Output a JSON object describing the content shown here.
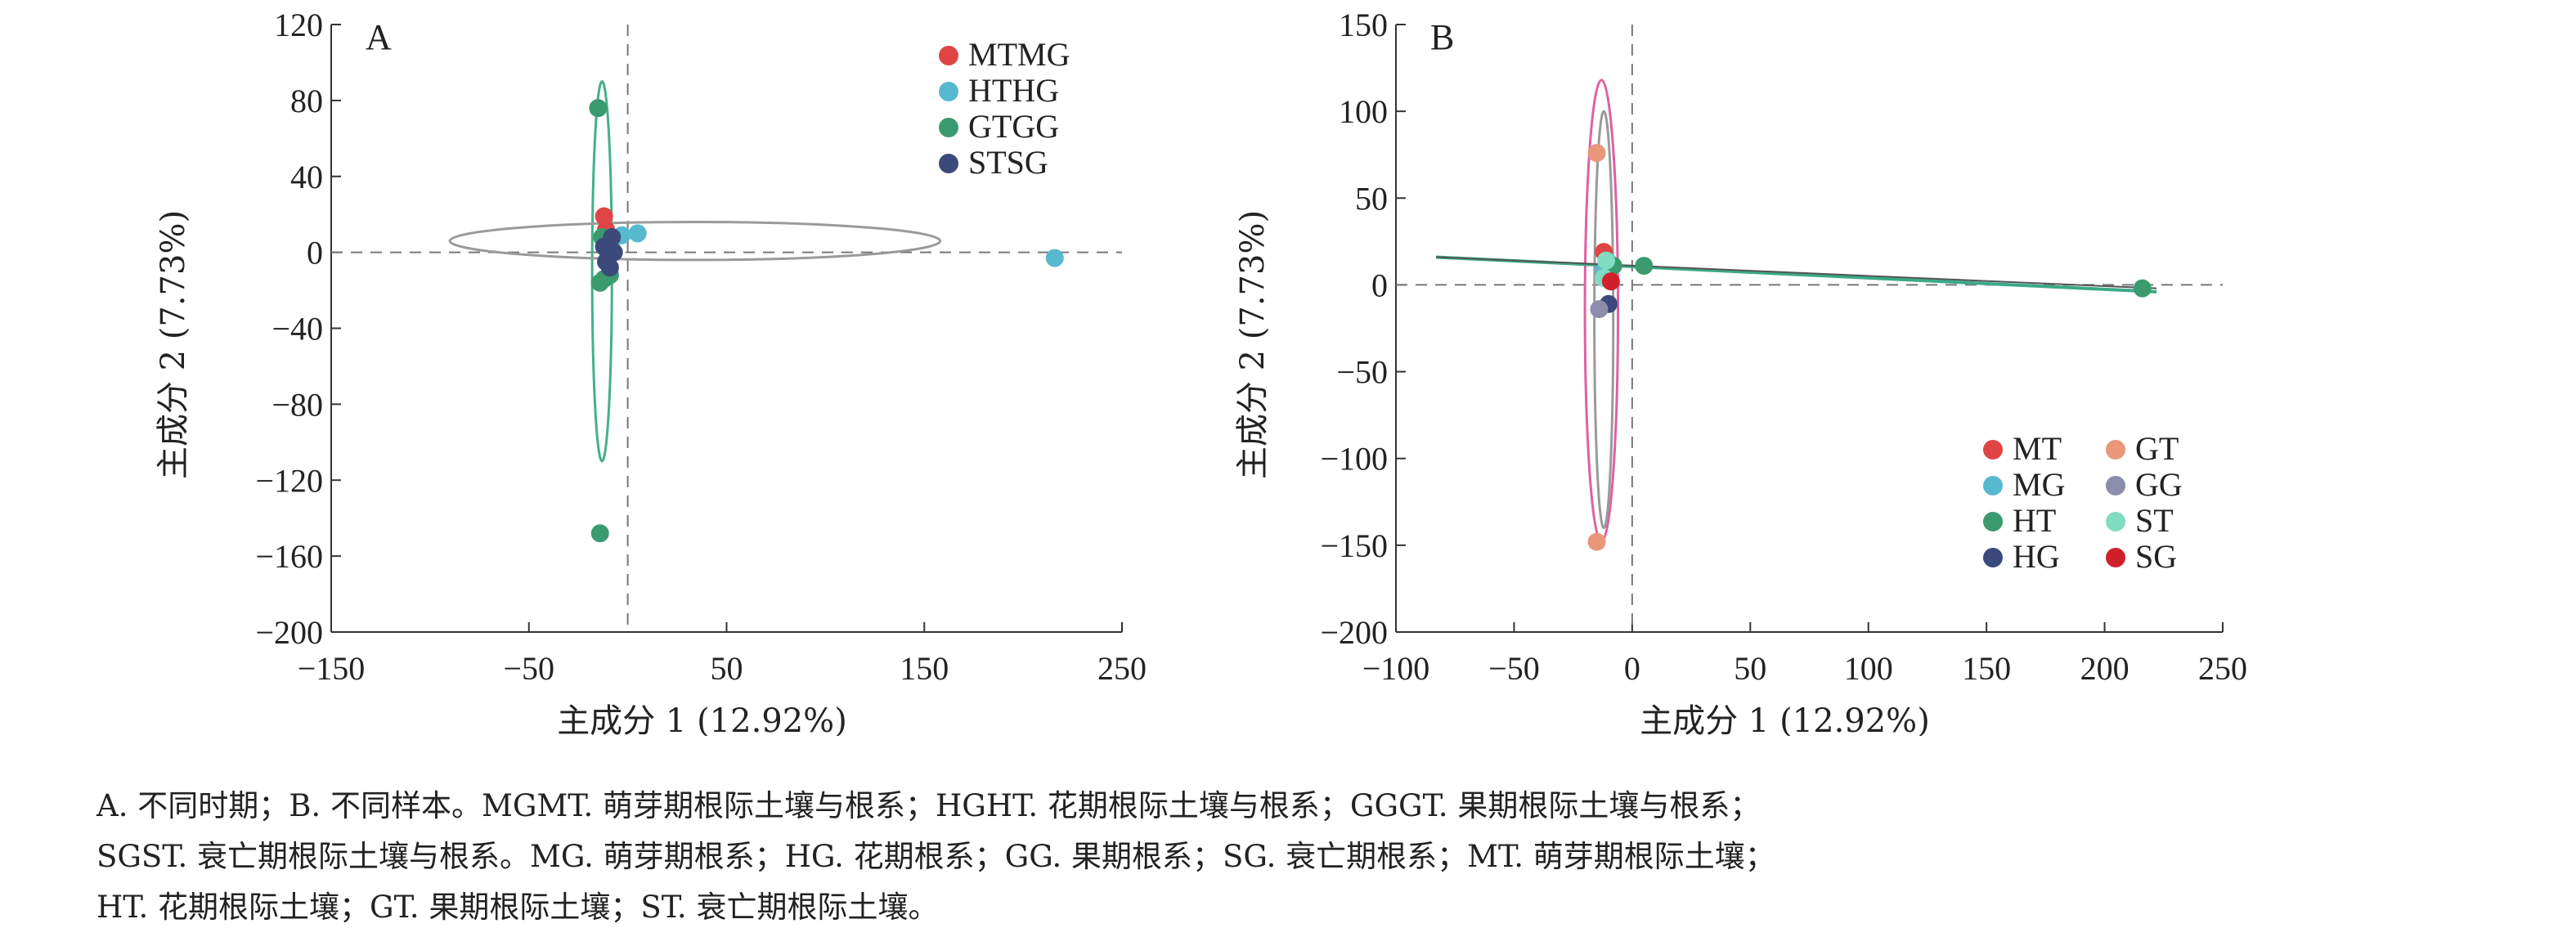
{
  "chart_data": [
    {
      "type": "scatter",
      "panel": "A",
      "xlabel": "主成分 1 (12.92%)",
      "ylabel": "主成分 2 (7.73%)",
      "xlim": [
        -150,
        250
      ],
      "ylim": [
        -200,
        120
      ],
      "xticks": [
        -150,
        -50,
        50,
        150,
        250
      ],
      "yticks": [
        -200,
        -160,
        -120,
        -80,
        -40,
        0,
        40,
        80,
        120
      ],
      "legend_position": "top-right",
      "reference_lines": {
        "x": 0,
        "y": 0
      },
      "series": [
        {
          "name": "MTMG",
          "color": "#e04545",
          "points": [
            [
              -12,
              19
            ],
            [
              -11,
              12
            ],
            [
              -10,
              5
            ]
          ]
        },
        {
          "name": "HTHG",
          "color": "#56b9cf",
          "points": [
            [
              5,
              10
            ],
            [
              -3,
              9
            ],
            [
              216,
              -3
            ],
            [
              -8,
              6
            ]
          ]
        },
        {
          "name": "GTGG",
          "color": "#3a9b6e",
          "points": [
            [
              -15,
              76
            ],
            [
              -14,
              -148
            ],
            [
              -12,
              -14
            ],
            [
              -14,
              -16
            ],
            [
              -9,
              -12
            ],
            [
              -13,
              8
            ]
          ]
        },
        {
          "name": "STSG",
          "color": "#3b4a7a",
          "points": [
            [
              -8,
              8
            ],
            [
              -7,
              0
            ],
            [
              -11,
              -5
            ],
            [
              -9,
              -8
            ],
            [
              -12,
              3
            ],
            [
              -10,
              -3
            ]
          ]
        }
      ],
      "ellipses": [
        {
          "group": "GTGG",
          "color": "#45b088",
          "cx": -13,
          "cy": -10,
          "rx": 5,
          "ry": 100
        },
        {
          "group": "HTHG",
          "color": "#9a9a9a",
          "cx": 34,
          "cy": 6,
          "rx": 124,
          "ry": 10
        },
        {
          "group": "MTMG",
          "color": "#9a9a9a",
          "cx": -11,
          "cy": 11,
          "rx": 2.5,
          "ry": 10
        },
        {
          "group": "STSG",
          "color": "#9a9a9a",
          "cx": -10,
          "cy": -1,
          "rx": 3,
          "ry": 12
        }
      ]
    },
    {
      "type": "scatter",
      "panel": "B",
      "xlabel": "主成分 1 (12.92%)",
      "ylabel": "主成分 2 (7.73%)",
      "xlim": [
        -100,
        250
      ],
      "ylim": [
        -200,
        150
      ],
      "xticks": [
        -100,
        -50,
        0,
        50,
        100,
        150,
        200,
        250
      ],
      "yticks": [
        -200,
        -150,
        -100,
        -50,
        0,
        50,
        100,
        150
      ],
      "legend_position": "bottom-right",
      "reference_lines": {
        "x": 0,
        "y": 0
      },
      "series": [
        {
          "name": "MT",
          "color": "#e04545",
          "points": [
            [
              -12,
              19
            ]
          ]
        },
        {
          "name": "MG",
          "color": "#56b9cf",
          "points": [
            [
              -10,
              13
            ],
            [
              -12,
              8
            ]
          ]
        },
        {
          "name": "HT",
          "color": "#3a9b6e",
          "points": [
            [
              5,
              11
            ],
            [
              -8,
              11
            ],
            [
              216,
              -2
            ]
          ]
        },
        {
          "name": "HG",
          "color": "#3b4a7a",
          "points": [
            [
              -10,
              -11
            ]
          ]
        },
        {
          "name": "GT",
          "color": "#e9967a",
          "points": [
            [
              -15,
              76
            ],
            [
              -15,
              -148
            ]
          ]
        },
        {
          "name": "GG",
          "color": "#8c8cab",
          "points": [
            [
              -14,
              -14
            ]
          ]
        },
        {
          "name": "ST",
          "color": "#7fdcc0",
          "points": [
            [
              -11,
              14
            ],
            [
              -12,
              4
            ]
          ]
        },
        {
          "name": "SG",
          "color": "#d0202e",
          "points": [
            [
              -9,
              2
            ]
          ]
        }
      ],
      "ellipses": [
        {
          "group": "GT",
          "color": "#e060a0",
          "cx": -13,
          "cy": -15,
          "rx": 7,
          "ry": 133
        },
        {
          "group": "GG",
          "color": "#9a9a9a",
          "cx": -12,
          "cy": -20,
          "rx": 4,
          "ry": 120
        }
      ],
      "lines": [
        {
          "group": "HT",
          "color": "#3aaa88",
          "from": [
            -83,
            16
          ],
          "to": [
            222,
            -4
          ]
        },
        {
          "group": "HT-2",
          "color": "#555555",
          "from": [
            -83,
            16
          ],
          "to": [
            222,
            -2
          ]
        }
      ]
    }
  ],
  "panels": {
    "a": {
      "letter": "A"
    },
    "b": {
      "letter": "B"
    }
  },
  "caption": {
    "line1": "A. 不同时期；B. 不同样本。MGMT. 萌芽期根际土壤与根系；HGHT. 花期根际土壤与根系；GGGT. 果期根际土壤与根系；",
    "line2": "SGST. 衰亡期根际土壤与根系。MG. 萌芽期根系；HG. 花期根系；GG. 果期根系；SG. 衰亡期根系；MT. 萌芽期根际土壤；",
    "line3": "HT. 花期根际土壤；GT. 果期根际土壤；ST. 衰亡期根际土壤。"
  }
}
